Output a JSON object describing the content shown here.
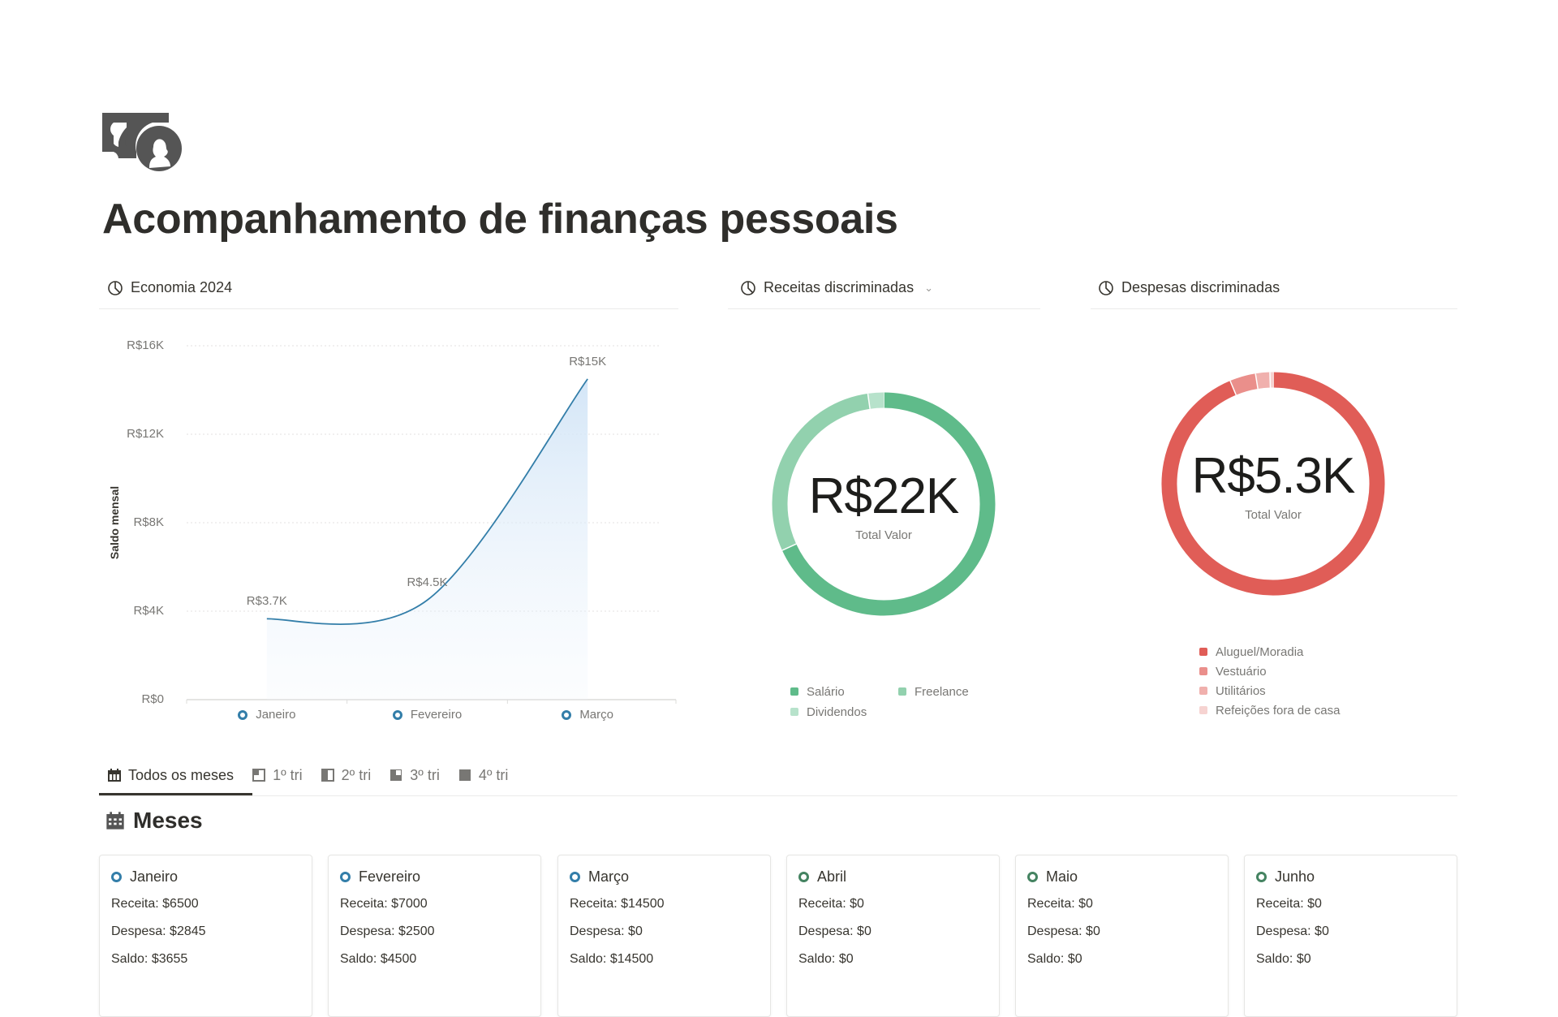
{
  "page": {
    "icon": "money-bill-icon",
    "title": "Acompanhamento de finanças pessoais"
  },
  "sections": {
    "economia": {
      "title": "Economia 2024",
      "icon": "pie-chart-icon"
    },
    "receitas": {
      "title": "Receitas discriminadas",
      "icon": "pie-chart-icon"
    },
    "despesas": {
      "title": "Despesas discriminadas",
      "icon": "pie-chart-icon"
    }
  },
  "colors": {
    "line": "#337ea9",
    "month_status_blue": "#337ea9",
    "month_status_green": "#448361"
  },
  "chart_data": [
    {
      "type": "area",
      "title": "",
      "xlabel": "",
      "ylabel": "Saldo mensal",
      "ylim": [
        0,
        16000
      ],
      "yticks": [
        "R$0",
        "R$4K",
        "R$8K",
        "R$12K",
        "R$16K"
      ],
      "grid": true,
      "categories": [
        "Janeiro",
        "Fevereiro",
        "Março"
      ],
      "values": [
        3655,
        4500,
        14500
      ],
      "data_labels": [
        "R$3.7K",
        "R$4.5K",
        "R$15K"
      ]
    },
    {
      "type": "pie",
      "variant": "donut",
      "center_value": "R$22K",
      "center_label": "Total Valor",
      "legend_position": "bottom",
      "slices": [
        {
          "name": "Salário",
          "value": 15000,
          "color": "#5fbb8a"
        },
        {
          "name": "Freelance",
          "value": 6500,
          "color": "#92d1ae"
        },
        {
          "name": "Dividendos",
          "value": 500,
          "color": "#b7e2cb"
        }
      ]
    },
    {
      "type": "pie",
      "variant": "donut",
      "center_value": "R$5.3K",
      "center_label": "Total Valor",
      "legend_position": "bottom",
      "slices": [
        {
          "name": "Aluguel/Moradia",
          "value": 4980,
          "color": "#e05d57"
        },
        {
          "name": "Vestuário",
          "value": 200,
          "color": "#ea8f8b"
        },
        {
          "name": "Utilitários",
          "value": 110,
          "color": "#f0b0ad"
        },
        {
          "name": "Refeições fora de casa",
          "value": 25,
          "color": "#f6d3d1"
        }
      ]
    }
  ],
  "tabs": [
    {
      "label": "Todos os meses",
      "icon": "calendar-icon",
      "active": true
    },
    {
      "label": "1º tri",
      "icon": "quarter-1-icon"
    },
    {
      "label": "2º tri",
      "icon": "quarter-2-icon"
    },
    {
      "label": "3º tri",
      "icon": "quarter-3-icon"
    },
    {
      "label": "4º tri",
      "icon": "quarter-4-icon"
    }
  ],
  "database": {
    "title": "Meses",
    "icon": "calendar-icon"
  },
  "months": [
    {
      "name": "Janeiro",
      "status": "blue",
      "receita": "Receita: $6500",
      "despesa": "Despesa: $2845",
      "saldo": "Saldo: $3655"
    },
    {
      "name": "Fevereiro",
      "status": "blue",
      "receita": "Receita: $7000",
      "despesa": "Despesa: $2500",
      "saldo": "Saldo: $4500"
    },
    {
      "name": "Março",
      "status": "blue",
      "receita": "Receita: $14500",
      "despesa": "Despesa: $0",
      "saldo": "Saldo: $14500"
    },
    {
      "name": "Abril",
      "status": "green",
      "receita": "Receita: $0",
      "despesa": "Despesa: $0",
      "saldo": "Saldo: $0"
    },
    {
      "name": "Maio",
      "status": "green",
      "receita": "Receita: $0",
      "despesa": "Despesa: $0",
      "saldo": "Saldo: $0"
    },
    {
      "name": "Junho",
      "status": "green",
      "receita": "Receita: $0",
      "despesa": "Despesa: $0",
      "saldo": "Saldo: $0"
    }
  ]
}
